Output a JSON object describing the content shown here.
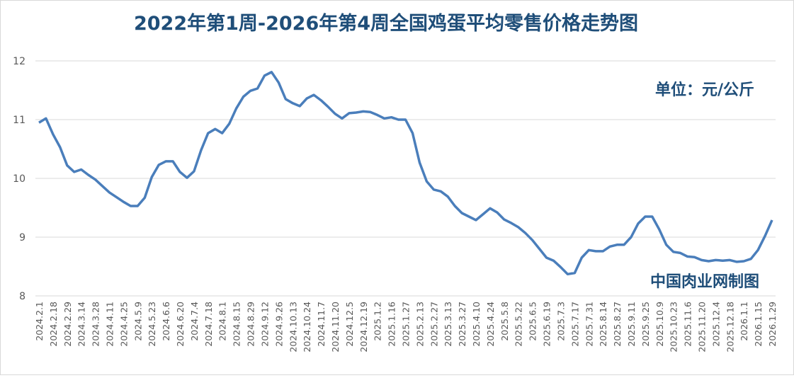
{
  "chart_data": {
    "type": "line",
    "title": "2022年第1周-2026年第4周全国鸡蛋平均零售价格走势图",
    "annotations": [
      "单位：元/公斤",
      "中国肉业网制图"
    ],
    "categories": [
      "2024.2.1",
      null,
      "2024.2.18",
      null,
      "2024.2.29",
      null,
      "2024.3.14",
      null,
      "2024.3.28",
      null,
      "2024.4.11",
      null,
      "2024.4.25",
      null,
      "2024.5.9",
      null,
      "2024.5.23",
      null,
      "2024.6.6",
      null,
      "2024.6.20",
      null,
      "2024.7.4",
      null,
      "2024.7.18",
      null,
      "2024.8.1",
      null,
      "2024.8.15",
      null,
      "2024.8.29",
      null,
      "2024.9.12",
      null,
      "2024.9.26",
      null,
      "2024.10.13",
      null,
      "2024.10.24",
      null,
      "2024.11.7",
      null,
      "2024.11.20",
      null,
      "2024.12.5",
      null,
      "2024.12.19",
      null,
      "2025.1.2",
      null,
      "2025.1.16",
      null,
      "2025.1.27",
      null,
      "2025.2.13",
      null,
      "2025.2.27",
      null,
      "2025.3.13",
      null,
      "2025.3.27",
      null,
      "2025.4.10",
      null,
      "2025.4.24",
      null,
      "2025.5.8",
      null,
      "2025.5.22",
      null,
      "2025.6.5",
      null,
      "2025.6.19",
      null,
      "2025.7.3",
      null,
      "2025.7.17",
      null,
      "2025.7.31",
      null,
      "2025.8.14",
      null,
      "2025.8.27",
      null,
      "2025.9.11",
      null,
      "2025.9.25",
      null,
      "2025.10.9",
      null,
      "2025.10.23",
      null,
      "2025.11.6",
      null,
      "2025.11.20",
      null,
      "2025.12.4",
      null,
      "2025.12.18",
      null,
      "2026.1.1",
      null,
      "2026.1.15",
      null,
      "2026.1.29"
    ],
    "series": [
      {
        "name": "全国鸡蛋平均零售价格",
        "color": "#4a7ebb",
        "values": [
          10.95,
          11.02,
          10.75,
          10.53,
          10.22,
          10.11,
          10.15,
          10.06,
          9.98,
          9.87,
          9.76,
          9.68,
          9.6,
          9.53,
          9.53,
          9.67,
          10.02,
          10.23,
          10.29,
          10.29,
          10.11,
          10.01,
          10.12,
          10.48,
          10.77,
          10.84,
          10.77,
          10.93,
          11.19,
          11.39,
          11.49,
          11.53,
          11.75,
          11.81,
          11.63,
          11.35,
          11.28,
          11.23,
          11.36,
          11.42,
          11.33,
          11.22,
          11.1,
          11.02,
          11.11,
          11.12,
          11.14,
          11.13,
          11.08,
          11.02,
          11.04,
          11.0,
          11.0,
          10.77,
          10.27,
          9.95,
          9.81,
          9.78,
          9.69,
          9.53,
          9.41,
          9.35,
          9.29,
          9.39,
          9.49,
          9.42,
          9.3,
          9.24,
          9.17,
          9.07,
          8.95,
          8.8,
          8.65,
          8.6,
          8.49,
          8.37,
          8.39,
          8.65,
          8.78,
          8.76,
          8.76,
          8.84,
          8.87,
          8.87,
          9.0,
          9.23,
          9.35,
          9.35,
          9.13,
          8.87,
          8.75,
          8.73,
          8.67,
          8.66,
          8.61,
          8.59,
          8.61,
          8.6,
          8.61,
          8.58,
          8.59,
          8.63,
          8.78,
          9.02,
          9.29
        ]
      }
    ],
    "ylim": [
      8,
      12
    ],
    "yticks": [
      8,
      9,
      10,
      11,
      12
    ],
    "grid": true
  }
}
